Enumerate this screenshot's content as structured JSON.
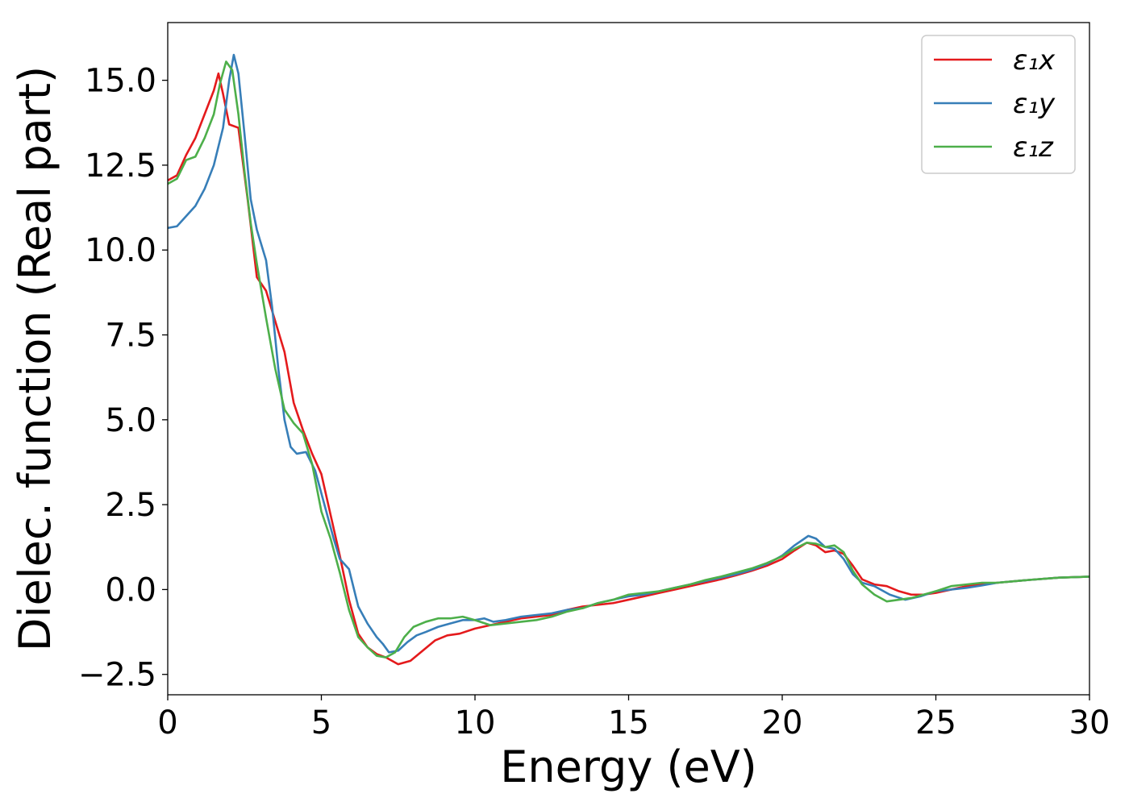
{
  "chart_data": {
    "type": "line",
    "title": "",
    "xlabel": "Energy (eV)",
    "ylabel": "Dielec. function (Real part)",
    "xlim": [
      0,
      30
    ],
    "ylim": [
      -3.1,
      16.7
    ],
    "xticks": [
      0,
      5,
      10,
      15,
      20,
      25,
      30
    ],
    "xtick_labels": [
      "0",
      "5",
      "10",
      "15",
      "20",
      "25",
      "30"
    ],
    "yticks": [
      -2.5,
      0.0,
      2.5,
      5.0,
      7.5,
      10.0,
      12.5,
      15.0
    ],
    "ytick_labels": [
      "−2.5",
      "0.0",
      "2.5",
      "5.0",
      "7.5",
      "10.0",
      "12.5",
      "15.0"
    ],
    "grid": false,
    "legend_position": "top-right",
    "series": [
      {
        "name": "ε₁x",
        "color": "#e41a1c",
        "points": [
          [
            0,
            12.05
          ],
          [
            0.3,
            12.2
          ],
          [
            0.6,
            12.8
          ],
          [
            0.9,
            13.3
          ],
          [
            1.2,
            14.0
          ],
          [
            1.5,
            14.7
          ],
          [
            1.65,
            15.2
          ],
          [
            1.8,
            14.6
          ],
          [
            2.0,
            13.7
          ],
          [
            2.3,
            13.6
          ],
          [
            2.6,
            11.5
          ],
          [
            2.9,
            9.2
          ],
          [
            3.2,
            8.8
          ],
          [
            3.5,
            7.9
          ],
          [
            3.8,
            7.0
          ],
          [
            4.1,
            5.5
          ],
          [
            4.4,
            4.7
          ],
          [
            4.7,
            4.0
          ],
          [
            5.0,
            3.4
          ],
          [
            5.3,
            2.2
          ],
          [
            5.6,
            1.0
          ],
          [
            5.9,
            -0.3
          ],
          [
            6.2,
            -1.3
          ],
          [
            6.5,
            -1.7
          ],
          [
            6.8,
            -1.9
          ],
          [
            7.1,
            -2.0
          ],
          [
            7.5,
            -2.2
          ],
          [
            7.9,
            -2.1
          ],
          [
            8.3,
            -1.8
          ],
          [
            8.7,
            -1.5
          ],
          [
            9.1,
            -1.35
          ],
          [
            9.5,
            -1.3
          ],
          [
            10.0,
            -1.15
          ],
          [
            10.5,
            -1.05
          ],
          [
            11.0,
            -0.95
          ],
          [
            11.5,
            -0.85
          ],
          [
            12.0,
            -0.8
          ],
          [
            12.5,
            -0.75
          ],
          [
            13.0,
            -0.6
          ],
          [
            13.5,
            -0.5
          ],
          [
            14.0,
            -0.45
          ],
          [
            14.5,
            -0.4
          ],
          [
            15.0,
            -0.3
          ],
          [
            15.5,
            -0.2
          ],
          [
            16.0,
            -0.1
          ],
          [
            16.5,
            0.0
          ],
          [
            17.0,
            0.1
          ],
          [
            17.5,
            0.2
          ],
          [
            18.0,
            0.3
          ],
          [
            18.5,
            0.42
          ],
          [
            19.0,
            0.55
          ],
          [
            19.5,
            0.7
          ],
          [
            20.0,
            0.9
          ],
          [
            20.4,
            1.15
          ],
          [
            20.8,
            1.38
          ],
          [
            21.1,
            1.3
          ],
          [
            21.4,
            1.1
          ],
          [
            21.7,
            1.15
          ],
          [
            22.0,
            1.05
          ],
          [
            22.3,
            0.7
          ],
          [
            22.6,
            0.3
          ],
          [
            23.0,
            0.15
          ],
          [
            23.4,
            0.1
          ],
          [
            23.8,
            -0.05
          ],
          [
            24.2,
            -0.15
          ],
          [
            24.6,
            -0.15
          ],
          [
            25.0,
            -0.1
          ],
          [
            25.5,
            0.0
          ],
          [
            26.0,
            0.1
          ],
          [
            26.5,
            0.15
          ],
          [
            27.0,
            0.2
          ],
          [
            28.0,
            0.28
          ],
          [
            29.0,
            0.35
          ],
          [
            30.0,
            0.38
          ]
        ]
      },
      {
        "name": "ε₁y",
        "color": "#377eb8",
        "points": [
          [
            0,
            10.65
          ],
          [
            0.3,
            10.7
          ],
          [
            0.6,
            11.0
          ],
          [
            0.9,
            11.3
          ],
          [
            1.2,
            11.8
          ],
          [
            1.5,
            12.5
          ],
          [
            1.8,
            13.6
          ],
          [
            2.0,
            15.0
          ],
          [
            2.15,
            15.75
          ],
          [
            2.3,
            15.2
          ],
          [
            2.5,
            13.4
          ],
          [
            2.7,
            11.5
          ],
          [
            2.9,
            10.6
          ],
          [
            3.2,
            9.7
          ],
          [
            3.4,
            8.3
          ],
          [
            3.6,
            6.5
          ],
          [
            3.8,
            5.0
          ],
          [
            4.0,
            4.2
          ],
          [
            4.2,
            4.0
          ],
          [
            4.5,
            4.05
          ],
          [
            4.8,
            3.5
          ],
          [
            5.1,
            2.5
          ],
          [
            5.4,
            1.5
          ],
          [
            5.6,
            0.9
          ],
          [
            5.9,
            0.6
          ],
          [
            6.2,
            -0.5
          ],
          [
            6.5,
            -1.0
          ],
          [
            6.8,
            -1.4
          ],
          [
            7.0,
            -1.6
          ],
          [
            7.2,
            -1.85
          ],
          [
            7.5,
            -1.8
          ],
          [
            7.8,
            -1.55
          ],
          [
            8.1,
            -1.35
          ],
          [
            8.4,
            -1.25
          ],
          [
            8.8,
            -1.1
          ],
          [
            9.2,
            -1.0
          ],
          [
            9.6,
            -0.9
          ],
          [
            10.0,
            -0.9
          ],
          [
            10.3,
            -0.85
          ],
          [
            10.6,
            -0.95
          ],
          [
            11.0,
            -0.9
          ],
          [
            11.5,
            -0.8
          ],
          [
            12.0,
            -0.75
          ],
          [
            12.5,
            -0.7
          ],
          [
            13.0,
            -0.6
          ],
          [
            13.5,
            -0.55
          ],
          [
            14.0,
            -0.4
          ],
          [
            14.5,
            -0.3
          ],
          [
            15.0,
            -0.2
          ],
          [
            15.5,
            -0.15
          ],
          [
            16.0,
            -0.05
          ],
          [
            16.5,
            0.05
          ],
          [
            17.0,
            0.15
          ],
          [
            17.5,
            0.25
          ],
          [
            18.0,
            0.35
          ],
          [
            18.5,
            0.45
          ],
          [
            19.0,
            0.58
          ],
          [
            19.5,
            0.75
          ],
          [
            20.0,
            1.0
          ],
          [
            20.4,
            1.3
          ],
          [
            20.85,
            1.58
          ],
          [
            21.1,
            1.5
          ],
          [
            21.4,
            1.25
          ],
          [
            21.7,
            1.2
          ],
          [
            22.0,
            0.9
          ],
          [
            22.3,
            0.45
          ],
          [
            22.6,
            0.2
          ],
          [
            23.0,
            0.1
          ],
          [
            23.5,
            -0.15
          ],
          [
            24.0,
            -0.3
          ],
          [
            24.5,
            -0.2
          ],
          [
            25.0,
            -0.05
          ],
          [
            25.5,
            0.0
          ],
          [
            26.0,
            0.05
          ],
          [
            26.5,
            0.12
          ],
          [
            27.0,
            0.2
          ],
          [
            28.0,
            0.28
          ],
          [
            29.0,
            0.35
          ],
          [
            30.0,
            0.38
          ]
        ]
      },
      {
        "name": "ε₁z",
        "color": "#4daf4a",
        "points": [
          [
            0,
            11.95
          ],
          [
            0.3,
            12.1
          ],
          [
            0.6,
            12.65
          ],
          [
            0.9,
            12.75
          ],
          [
            1.2,
            13.3
          ],
          [
            1.5,
            14.0
          ],
          [
            1.7,
            14.9
          ],
          [
            1.9,
            15.55
          ],
          [
            2.1,
            15.3
          ],
          [
            2.3,
            14.0
          ],
          [
            2.5,
            12.3
          ],
          [
            2.7,
            10.8
          ],
          [
            2.9,
            9.6
          ],
          [
            3.2,
            8.0
          ],
          [
            3.5,
            6.5
          ],
          [
            3.8,
            5.3
          ],
          [
            4.1,
            4.9
          ],
          [
            4.4,
            4.6
          ],
          [
            4.7,
            3.7
          ],
          [
            5.0,
            2.3
          ],
          [
            5.3,
            1.5
          ],
          [
            5.6,
            0.5
          ],
          [
            5.9,
            -0.6
          ],
          [
            6.2,
            -1.4
          ],
          [
            6.5,
            -1.7
          ],
          [
            6.8,
            -1.95
          ],
          [
            7.1,
            -2.0
          ],
          [
            7.4,
            -1.85
          ],
          [
            7.7,
            -1.4
          ],
          [
            8.0,
            -1.1
          ],
          [
            8.4,
            -0.95
          ],
          [
            8.8,
            -0.85
          ],
          [
            9.2,
            -0.85
          ],
          [
            9.6,
            -0.8
          ],
          [
            10.0,
            -0.9
          ],
          [
            10.5,
            -1.05
          ],
          [
            11.0,
            -1.0
          ],
          [
            11.5,
            -0.95
          ],
          [
            12.0,
            -0.9
          ],
          [
            12.5,
            -0.8
          ],
          [
            13.0,
            -0.65
          ],
          [
            13.5,
            -0.55
          ],
          [
            14.0,
            -0.4
          ],
          [
            14.5,
            -0.3
          ],
          [
            15.0,
            -0.15
          ],
          [
            15.5,
            -0.1
          ],
          [
            16.0,
            -0.05
          ],
          [
            16.5,
            0.05
          ],
          [
            17.0,
            0.15
          ],
          [
            17.5,
            0.28
          ],
          [
            18.0,
            0.38
          ],
          [
            18.5,
            0.5
          ],
          [
            19.0,
            0.62
          ],
          [
            19.5,
            0.78
          ],
          [
            20.0,
            0.98
          ],
          [
            20.4,
            1.2
          ],
          [
            20.8,
            1.38
          ],
          [
            21.1,
            1.35
          ],
          [
            21.4,
            1.25
          ],
          [
            21.7,
            1.3
          ],
          [
            22.0,
            1.1
          ],
          [
            22.3,
            0.55
          ],
          [
            22.6,
            0.15
          ],
          [
            23.0,
            -0.15
          ],
          [
            23.4,
            -0.35
          ],
          [
            23.8,
            -0.3
          ],
          [
            24.2,
            -0.25
          ],
          [
            24.6,
            -0.15
          ],
          [
            25.0,
            -0.05
          ],
          [
            25.5,
            0.1
          ],
          [
            26.0,
            0.15
          ],
          [
            26.5,
            0.2
          ],
          [
            27.0,
            0.2
          ],
          [
            28.0,
            0.28
          ],
          [
            29.0,
            0.35
          ],
          [
            30.0,
            0.38
          ]
        ]
      }
    ]
  }
}
